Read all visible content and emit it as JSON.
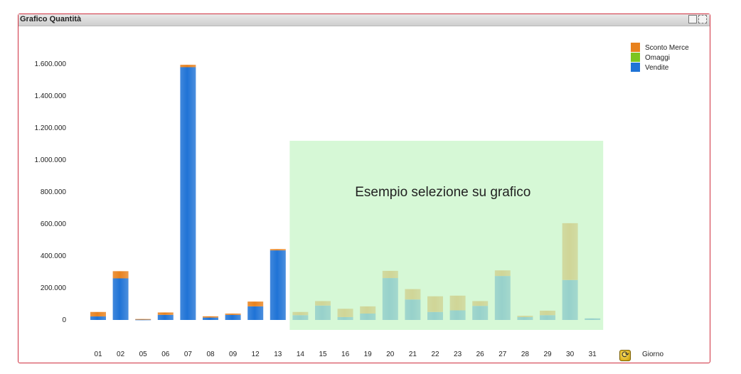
{
  "window": {
    "title": "Grafico Quantità"
  },
  "toolbar_icons": [
    "print-icon",
    "restore-icon"
  ],
  "dimension": {
    "label": "Giorno",
    "cycle_icon": "cycle-group-icon"
  },
  "colors": {
    "sconto_merce": "#e8821e",
    "omaggi": "#7cc520",
    "vendite": "#1f73d6",
    "selection_fill": "#c6f5c6",
    "frame_border": "#d03040"
  },
  "selection": {
    "label": "Esempio selezione su grafico",
    "from_category": "14",
    "to_category": "31"
  },
  "chart_data": {
    "type": "bar",
    "stacked": true,
    "title": "",
    "xlabel": "Giorno",
    "ylabel": "",
    "ylim": [
      0,
      1700000
    ],
    "yticks": [
      {
        "value": 0,
        "label": "0"
      },
      {
        "value": 200000,
        "label": "200.000"
      },
      {
        "value": 400000,
        "label": "400.000"
      },
      {
        "value": 600000,
        "label": "600.000"
      },
      {
        "value": 800000,
        "label": "800.000"
      },
      {
        "value": 1000000,
        "label": "1.000.000"
      },
      {
        "value": 1200000,
        "label": "1.200.000"
      },
      {
        "value": 1400000,
        "label": "1.400.000"
      },
      {
        "value": 1600000,
        "label": "1.600.000"
      }
    ],
    "legend_position": "top-right",
    "categories": [
      "01",
      "02",
      "05",
      "06",
      "07",
      "08",
      "09",
      "12",
      "13",
      "14",
      "15",
      "16",
      "19",
      "20",
      "21",
      "22",
      "23",
      "26",
      "27",
      "28",
      "29",
      "30",
      "31"
    ],
    "series": [
      {
        "name": "Vendite",
        "color": "#1f73d6",
        "values": [
          22000,
          260000,
          3000,
          32000,
          1580000,
          15000,
          32000,
          85000,
          435000,
          30000,
          90000,
          18000,
          40000,
          262000,
          128000,
          50000,
          60000,
          88000,
          275000,
          18000,
          30000,
          250000,
          10000
        ]
      },
      {
        "name": "Omaggi",
        "color": "#7cc520",
        "values": [
          0,
          0,
          0,
          0,
          0,
          0,
          0,
          0,
          0,
          0,
          0,
          0,
          0,
          0,
          0,
          0,
          0,
          0,
          0,
          0,
          0,
          0,
          0
        ]
      },
      {
        "name": "Sconto Merce",
        "color": "#e8821e",
        "values": [
          28000,
          45000,
          3000,
          15000,
          15000,
          8000,
          8000,
          30000,
          8000,
          20000,
          28000,
          52000,
          45000,
          45000,
          65000,
          98000,
          92000,
          30000,
          35000,
          8000,
          28000,
          355000,
          0
        ]
      }
    ]
  }
}
